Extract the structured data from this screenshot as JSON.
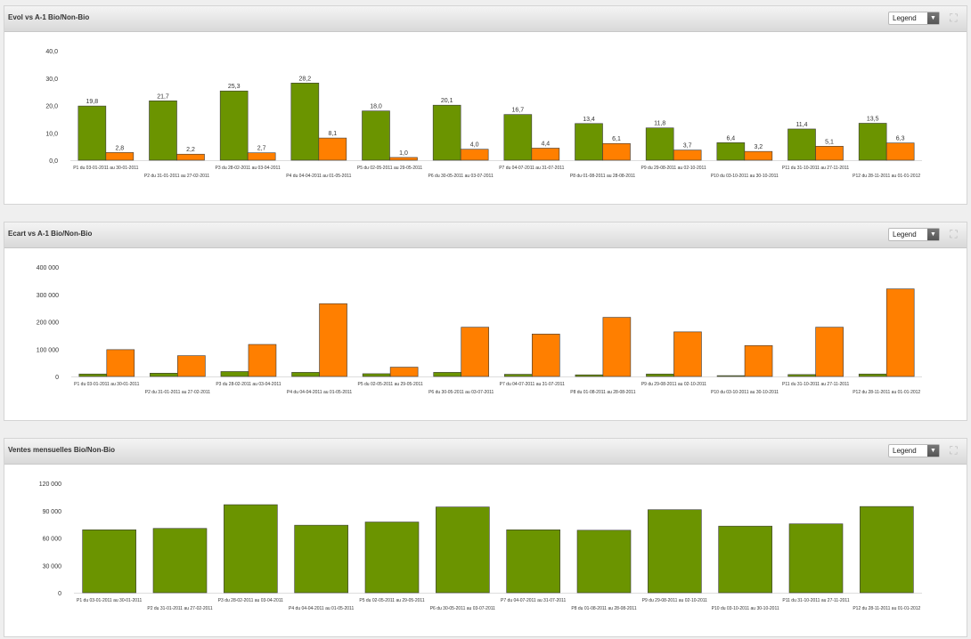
{
  "legend_label": "Legend",
  "colors": {
    "bio": "#6b9400",
    "non_bio": "#ff7f00"
  },
  "period_labels": [
    "P1 du 03-01-2011 au 30-01-2011",
    "P2 du 31-01-2011 au 27-02-2011",
    "P3 du 28-02-2011 au 03-04-2011",
    "P4 du 04-04-2011 au 01-05-2011",
    "P5 du 02-05-2011 au 29-05-2011",
    "P6 du 30-05-2011 au 03-07-2011",
    "P7 du 04-07-2011 au 31-07-2011",
    "P8 du 01-08-2011 au 28-08-2011",
    "P9 du 29-08-2011 au 02-10-2011",
    "P10 du 03-10-2011 au 30-10-2011",
    "P11 du 31-10-2011 au 27-11-2011",
    "P12 du 28-11-2011 au 01-01-2012"
  ],
  "chart_data": [
    {
      "type": "bar",
      "title": "Evol vs A-1 Bio/Non-Bio",
      "ylim": [
        0,
        40
      ],
      "yticks": [
        "0,0",
        "10,0",
        "20,0",
        "30,0",
        "40,0"
      ],
      "grid": false,
      "legend": "top-right",
      "series": [
        {
          "values": [
            19.8,
            21.7,
            25.3,
            28.2,
            18.0,
            20.1,
            16.7,
            13.4,
            11.8,
            6.4,
            11.4,
            13.5
          ],
          "labels": [
            "19,8",
            "21,7",
            "25,3",
            "28,2",
            "18,0",
            "20,1",
            "16,7",
            "13,4",
            "11,8",
            "6,4",
            "11,4",
            "13,5"
          ]
        },
        {
          "values": [
            2.8,
            2.2,
            2.7,
            8.1,
            1.0,
            4.0,
            4.4,
            6.1,
            3.7,
            3.2,
            5.1,
            6.3
          ],
          "labels": [
            "2,8",
            "2,2",
            "2,7",
            "8,1",
            "1,0",
            "4,0",
            "4,4",
            "6,1",
            "3,7",
            "3,2",
            "5,1",
            "6,3"
          ]
        }
      ]
    },
    {
      "type": "bar",
      "title": "Ecart vs A-1 Bio/Non-Bio",
      "ylim": [
        0,
        400000
      ],
      "yticks": [
        "0",
        "100 000",
        "200 000",
        "300 000",
        "400 000"
      ],
      "grid": false,
      "legend": "top-right",
      "series": [
        {
          "values": [
            9000,
            12000,
            18000,
            15000,
            10000,
            15000,
            8000,
            6000,
            9000,
            3000,
            7000,
            9000
          ]
        },
        {
          "values": [
            98000,
            76000,
            117000,
            266000,
            34000,
            180000,
            155000,
            216000,
            163000,
            113000,
            180000,
            320000
          ]
        }
      ]
    },
    {
      "type": "bar",
      "title": "Ventes mensuelles Bio/Non-Bio",
      "ylim": [
        0,
        120000
      ],
      "yticks": [
        "0",
        "30 000",
        "60 000",
        "90 000",
        "120 000"
      ],
      "grid": false,
      "legend": "top-right",
      "series": [
        {
          "values": [
            69000,
            70500,
            96500,
            74000,
            77500,
            94000,
            69000,
            68500,
            91000,
            73000,
            75500,
            94500
          ]
        }
      ]
    }
  ]
}
